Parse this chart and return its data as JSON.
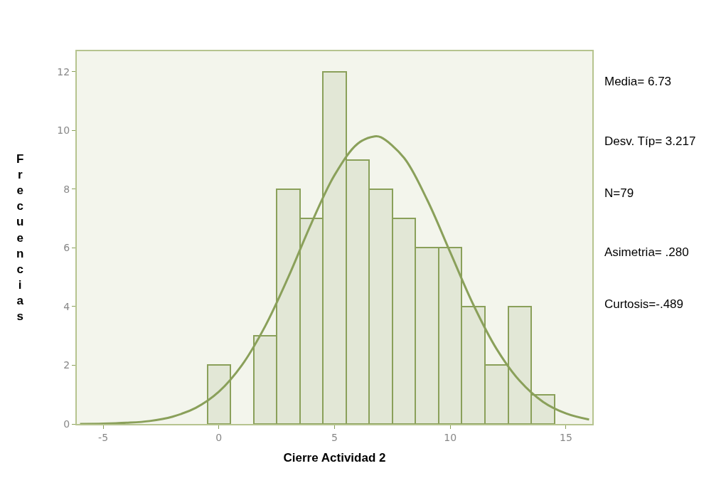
{
  "chart_data": {
    "type": "histogram",
    "xlabel": "Cierre Actividad 2",
    "ylabel": "Frecuencias",
    "bins": [
      -0.5,
      0.5,
      1.5,
      2.5,
      3.5,
      4.5,
      5.5,
      6.5,
      7.5,
      8.5,
      9.5,
      10.5,
      11.5,
      12.5,
      13.5,
      14.5
    ],
    "values": [
      2,
      0,
      3,
      8,
      7,
      12,
      9,
      8,
      7,
      6,
      6,
      4,
      2,
      4,
      1
    ],
    "color": "#e2e7d6",
    "series": [
      {
        "type": "line",
        "color": "#8aa05a",
        "x": [
          -6,
          -5,
          -4,
          -3,
          -2,
          -1,
          0,
          1,
          2,
          3,
          4,
          5,
          6,
          6.73,
          7,
          8,
          9,
          10,
          11,
          12,
          13,
          14,
          15,
          16
        ],
        "values": [
          0.0,
          0.01,
          0.04,
          0.1,
          0.25,
          0.55,
          1.1,
          2.01,
          3.33,
          5.0,
          6.84,
          8.48,
          9.55,
          9.8,
          9.77,
          9.07,
          7.64,
          5.85,
          4.06,
          2.56,
          1.47,
          0.76,
          0.36,
          0.15
        ]
      }
    ],
    "xlim": [
      -6.14,
      16.14
    ],
    "xticks": [
      -5,
      0,
      5,
      10,
      15
    ],
    "ylim": [
      0,
      12.7
    ],
    "yticks": [
      0,
      2,
      4,
      6,
      8,
      10,
      12
    ],
    "grid": false,
    "annotations": [
      "Media= 6.73",
      "Desv. Típ= 3.217",
      "N=79",
      "Asimetria= .280",
      "Curtosis=-.489"
    ]
  }
}
